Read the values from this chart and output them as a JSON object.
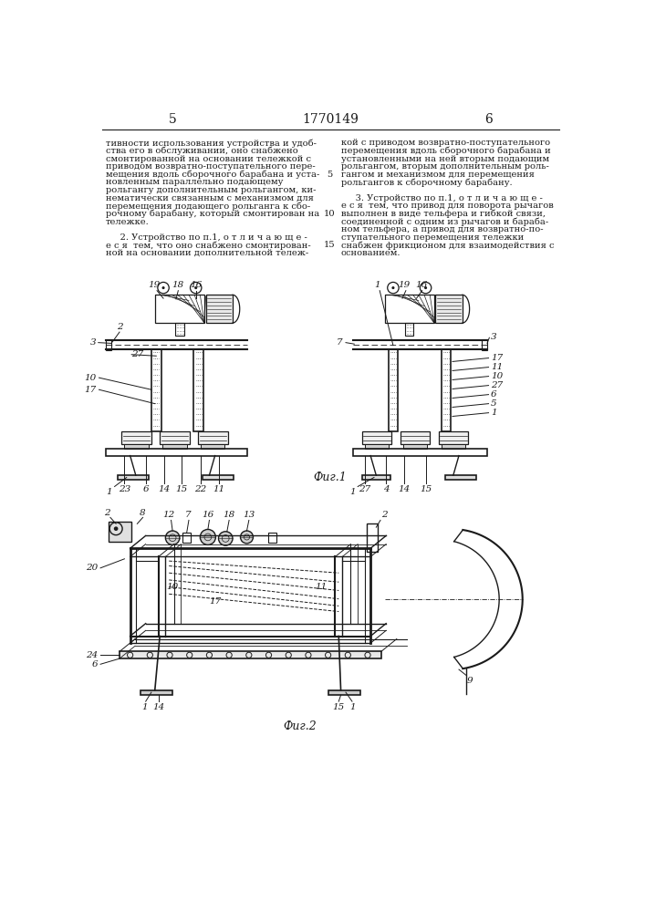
{
  "page_number_left": "5",
  "patent_number": "1770149",
  "page_number_right": "6",
  "background_color": "#ffffff",
  "line_color": "#1a1a1a",
  "text_color": "#1a1a1a",
  "fig1_caption": "Фиг.1",
  "fig2_caption": "Фиг.2"
}
